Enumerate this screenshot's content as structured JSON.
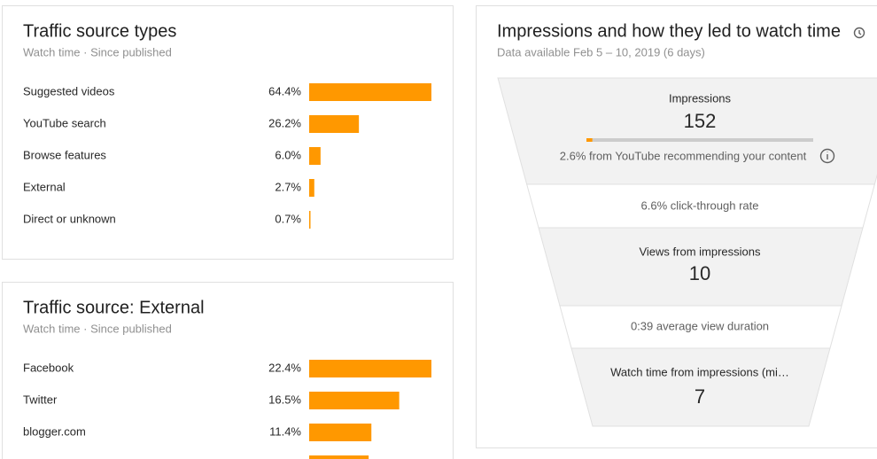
{
  "traffic_source_types": {
    "title": "Traffic source types",
    "subtitle": "Watch time · Since published",
    "rows": [
      {
        "name": "Suggested videos",
        "value": 64.4,
        "label": "64.4%"
      },
      {
        "name": "YouTube search",
        "value": 26.2,
        "label": "26.2%"
      },
      {
        "name": "Browse features",
        "value": 6.0,
        "label": "6.0%"
      },
      {
        "name": "External",
        "value": 2.7,
        "label": "2.7%"
      },
      {
        "name": "Direct or unknown",
        "value": 0.7,
        "label": "0.7%"
      }
    ]
  },
  "traffic_source_external": {
    "title": "Traffic source: External",
    "subtitle": "Watch time · Since published",
    "rows": [
      {
        "name": "Facebook",
        "value": 22.4,
        "label": "22.4%"
      },
      {
        "name": "Twitter",
        "value": 16.5,
        "label": "16.5%"
      },
      {
        "name": "blogger.com",
        "value": 11.4,
        "label": "11.4%"
      },
      {
        "name": null,
        "value": 10.9,
        "label": null
      }
    ]
  },
  "impressions": {
    "title": "Impressions and how they led to watch time",
    "subtitle": "Data available Feb 5 – 10, 2019 (6 days)",
    "impressions_label": "Impressions",
    "impressions_value": "152",
    "recommended_share": 2.6,
    "recommended_text": "2.6% from YouTube recommending your content",
    "ctr_text": "6.6% click-through rate",
    "views_label": "Views from impressions",
    "views_value": "10",
    "duration_text": "0:39 average view duration",
    "watch_label": "Watch time from impressions (mi…",
    "watch_value": "7"
  }
}
